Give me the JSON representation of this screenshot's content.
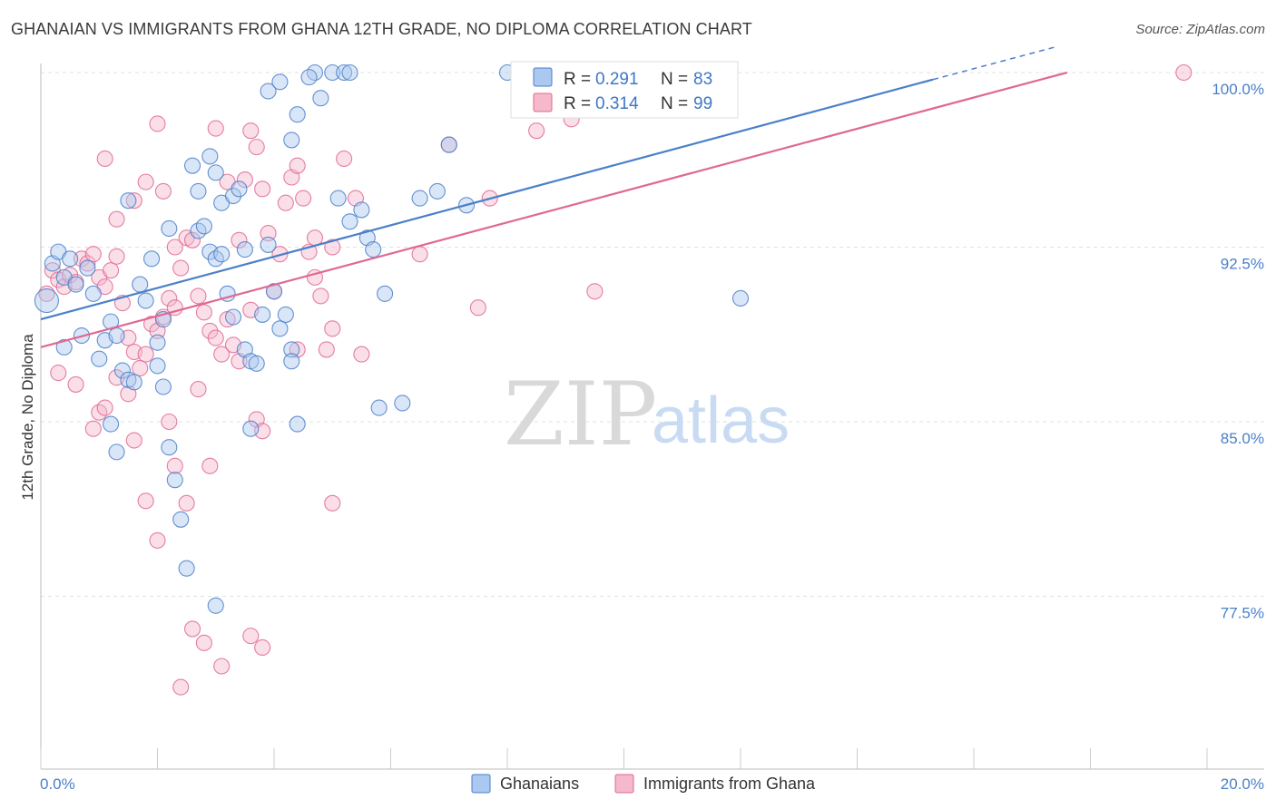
{
  "title": "GHANAIAN VS IMMIGRANTS FROM GHANA 12TH GRADE, NO DIPLOMA CORRELATION CHART",
  "source": "Source: ZipAtlas.com",
  "watermark": {
    "zip": "ZIP",
    "atlas": "atlas"
  },
  "colors": {
    "blue": "#4a7fc9",
    "blue_fill": "#aac8f0",
    "pink": "#e06892",
    "pink_fill": "#f5b9cb"
  },
  "chart_data": {
    "type": "scatter",
    "title": "GHANAIAN VS IMMIGRANTS FROM GHANA 12TH GRADE, NO DIPLOMA CORRELATION CHART",
    "xlabel": "",
    "ylabel": "12th Grade, No Diploma",
    "xlim": [
      0,
      20
    ],
    "ylim": [
      70.5,
      101.5
    ],
    "x_tick_labels": [
      {
        "value": 0,
        "label": "0.0%"
      },
      {
        "value": 20,
        "label": "20.0%"
      }
    ],
    "y_ticks": [
      {
        "value": 100,
        "label": "100.0%"
      },
      {
        "value": 92.5,
        "label": "92.5%"
      },
      {
        "value": 85,
        "label": "85.0%"
      },
      {
        "value": 77.5,
        "label": "77.5%"
      }
    ],
    "grid": true,
    "legend": {
      "position": "top-center",
      "entries": [
        {
          "r_label": "R =",
          "r_value": "0.291",
          "n_label": "N =",
          "n_value": "83"
        },
        {
          "r_label": "R =",
          "r_value": "0.314",
          "n_label": "N =",
          "n_value": "99"
        }
      ]
    },
    "bottom_legend": [
      "Ghanaians",
      "Immigrants from Ghana"
    ],
    "series": [
      {
        "name": "Ghanaians",
        "color": "#4a7fc9",
        "trend": {
          "x": [
            0,
            15.3
          ],
          "y": [
            89.4,
            99.7
          ],
          "dashed_to": [
            17.4,
            101.1
          ]
        },
        "points": [
          [
            0.1,
            90.2
          ],
          [
            0.2,
            91.8
          ],
          [
            0.3,
            92.3
          ],
          [
            0.4,
            91.2
          ],
          [
            0.5,
            92.0
          ],
          [
            0.6,
            90.9
          ],
          [
            0.8,
            91.6
          ],
          [
            0.9,
            90.5
          ],
          [
            1.1,
            88.5
          ],
          [
            1.2,
            89.3
          ],
          [
            1.3,
            88.7
          ],
          [
            1.4,
            87.2
          ],
          [
            1.5,
            86.8
          ],
          [
            1.6,
            86.7
          ],
          [
            1.7,
            90.9
          ],
          [
            1.8,
            90.2
          ],
          [
            2.0,
            88.4
          ],
          [
            2.1,
            89.4
          ],
          [
            1.9,
            92.0
          ],
          [
            2.2,
            93.3
          ],
          [
            0.4,
            88.2
          ],
          [
            0.7,
            88.7
          ],
          [
            1.0,
            87.7
          ],
          [
            1.2,
            84.9
          ],
          [
            1.3,
            83.7
          ],
          [
            1.5,
            94.5
          ],
          [
            2.0,
            87.4
          ],
          [
            2.1,
            86.5
          ],
          [
            2.2,
            83.9
          ],
          [
            2.3,
            82.5
          ],
          [
            2.4,
            80.8
          ],
          [
            2.5,
            78.7
          ],
          [
            2.7,
            93.2
          ],
          [
            2.8,
            93.4
          ],
          [
            2.9,
            92.3
          ],
          [
            3.0,
            92.0
          ],
          [
            3.1,
            92.2
          ],
          [
            3.2,
            90.5
          ],
          [
            3.3,
            89.5
          ],
          [
            2.6,
            96.0
          ],
          [
            2.7,
            94.9
          ],
          [
            2.9,
            96.4
          ],
          [
            3.0,
            95.7
          ],
          [
            3.1,
            94.4
          ],
          [
            3.3,
            94.7
          ],
          [
            3.4,
            95.0
          ],
          [
            3.5,
            88.1
          ],
          [
            3.6,
            87.6
          ],
          [
            3.7,
            87.5
          ],
          [
            3.5,
            92.4
          ],
          [
            3.8,
            89.6
          ],
          [
            3.9,
            92.6
          ],
          [
            4.0,
            90.6
          ],
          [
            4.1,
            89.0
          ],
          [
            4.2,
            89.6
          ],
          [
            4.3,
            88.1
          ],
          [
            4.3,
            87.6
          ],
          [
            4.4,
            84.9
          ],
          [
            3.6,
            84.7
          ],
          [
            3.9,
            99.2
          ],
          [
            4.1,
            99.6
          ],
          [
            4.3,
            97.1
          ],
          [
            4.4,
            98.2
          ],
          [
            4.7,
            100.0
          ],
          [
            5.0,
            100.0
          ],
          [
            5.2,
            100.0
          ],
          [
            5.3,
            100.0
          ],
          [
            4.6,
            99.8
          ],
          [
            4.8,
            98.9
          ],
          [
            5.1,
            94.6
          ],
          [
            5.3,
            93.6
          ],
          [
            5.5,
            94.1
          ],
          [
            5.6,
            92.9
          ],
          [
            5.7,
            92.4
          ],
          [
            5.9,
            90.5
          ],
          [
            5.8,
            85.6
          ],
          [
            6.2,
            85.8
          ],
          [
            6.5,
            94.6
          ],
          [
            6.8,
            94.9
          ],
          [
            7.0,
            96.9
          ],
          [
            7.3,
            94.3
          ],
          [
            8.0,
            100.0
          ],
          [
            12.0,
            90.3
          ],
          [
            3.0,
            77.1
          ]
        ]
      },
      {
        "name": "Immigrants from Ghana",
        "color": "#e06892",
        "trend": {
          "x": [
            0,
            17.6
          ],
          "y": [
            88.2,
            100.0
          ]
        },
        "points": [
          [
            0.1,
            90.5
          ],
          [
            0.2,
            91.5
          ],
          [
            0.3,
            91.1
          ],
          [
            0.4,
            90.8
          ],
          [
            0.5,
            91.3
          ],
          [
            0.6,
            91.0
          ],
          [
            0.7,
            92.0
          ],
          [
            0.8,
            91.8
          ],
          [
            0.9,
            92.2
          ],
          [
            1.0,
            91.2
          ],
          [
            1.1,
            90.8
          ],
          [
            1.2,
            91.5
          ],
          [
            1.3,
            92.1
          ],
          [
            1.4,
            90.1
          ],
          [
            1.5,
            88.6
          ],
          [
            1.6,
            88.0
          ],
          [
            1.7,
            87.3
          ],
          [
            1.8,
            87.9
          ],
          [
            1.9,
            89.2
          ],
          [
            2.0,
            88.9
          ],
          [
            2.1,
            89.5
          ],
          [
            2.2,
            90.3
          ],
          [
            2.3,
            89.9
          ],
          [
            2.4,
            91.6
          ],
          [
            2.5,
            92.9
          ],
          [
            2.6,
            92.8
          ],
          [
            2.7,
            90.4
          ],
          [
            2.8,
            89.7
          ],
          [
            2.9,
            88.9
          ],
          [
            0.3,
            87.1
          ],
          [
            0.6,
            86.6
          ],
          [
            0.9,
            84.7
          ],
          [
            1.0,
            85.4
          ],
          [
            1.1,
            85.6
          ],
          [
            1.3,
            86.9
          ],
          [
            1.5,
            86.2
          ],
          [
            1.6,
            84.2
          ],
          [
            1.8,
            81.6
          ],
          [
            2.0,
            79.9
          ],
          [
            2.2,
            85.0
          ],
          [
            2.3,
            83.1
          ],
          [
            2.5,
            81.5
          ],
          [
            1.1,
            96.3
          ],
          [
            1.3,
            93.7
          ],
          [
            1.6,
            94.5
          ],
          [
            1.8,
            95.3
          ],
          [
            2.0,
            97.8
          ],
          [
            2.1,
            94.9
          ],
          [
            2.3,
            92.5
          ],
          [
            3.0,
            97.6
          ],
          [
            3.2,
            95.3
          ],
          [
            3.4,
            92.8
          ],
          [
            3.5,
            95.4
          ],
          [
            3.6,
            97.5
          ],
          [
            3.7,
            96.8
          ],
          [
            3.8,
            95.0
          ],
          [
            3.9,
            93.1
          ],
          [
            4.0,
            90.6
          ],
          [
            4.1,
            92.2
          ],
          [
            4.2,
            94.4
          ],
          [
            4.3,
            95.5
          ],
          [
            4.4,
            96.0
          ],
          [
            4.5,
            94.6
          ],
          [
            4.6,
            92.3
          ],
          [
            4.7,
            91.2
          ],
          [
            4.8,
            90.4
          ],
          [
            4.9,
            88.1
          ],
          [
            3.0,
            88.6
          ],
          [
            3.1,
            87.9
          ],
          [
            3.3,
            88.3
          ],
          [
            3.4,
            87.6
          ],
          [
            3.6,
            89.8
          ],
          [
            3.7,
            85.1
          ],
          [
            3.8,
            84.6
          ],
          [
            2.9,
            83.1
          ],
          [
            2.6,
            76.1
          ],
          [
            2.8,
            75.5
          ],
          [
            3.1,
            74.5
          ],
          [
            3.6,
            75.8
          ],
          [
            3.8,
            75.3
          ],
          [
            2.4,
            73.6
          ],
          [
            5.0,
            81.5
          ],
          [
            4.7,
            92.9
          ],
          [
            5.0,
            92.5
          ],
          [
            5.2,
            96.3
          ],
          [
            5.4,
            94.6
          ],
          [
            6.5,
            92.2
          ],
          [
            7.0,
            96.9
          ],
          [
            7.5,
            89.9
          ],
          [
            7.7,
            94.6
          ],
          [
            8.5,
            97.5
          ],
          [
            9.1,
            98.0
          ],
          [
            9.5,
            90.6
          ],
          [
            19.6,
            100.0
          ],
          [
            5.0,
            89.0
          ],
          [
            4.4,
            88.1
          ],
          [
            5.5,
            87.9
          ],
          [
            3.2,
            89.4
          ],
          [
            2.7,
            86.4
          ]
        ]
      }
    ]
  }
}
